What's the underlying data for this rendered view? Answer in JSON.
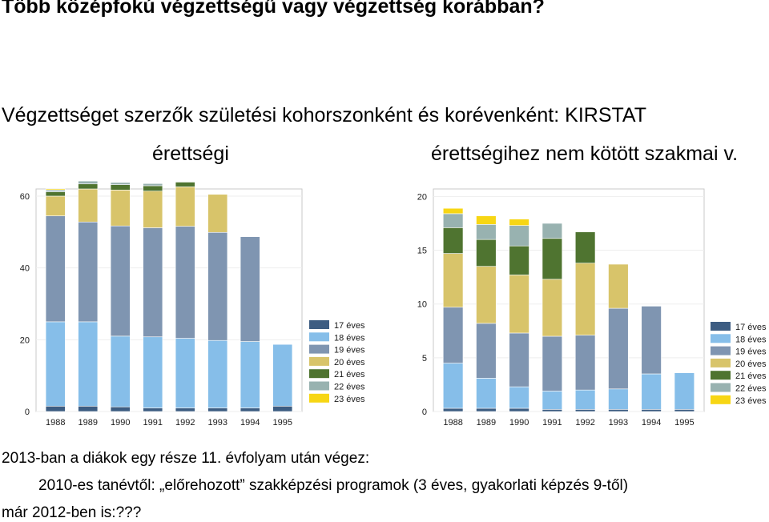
{
  "title": "Több középfokú végzettségű vagy végzettség korábban?",
  "subtitle": "Végzettséget szerzők születési kohorszonként és korévenként: KIRSTAT",
  "notes": {
    "line1": "2013-ban a diákok egy része 11. évfolyam után végez:",
    "line2": "2010-es tanévtől: „előrehozott” szakképzési programok (3 éves, gyakorlati képzés 9-től)",
    "line3": "már 2012-ben is:???"
  },
  "colors": {
    "17 éves": "#3d5d82",
    "18 éves": "#86bee9",
    "19 éves": "#7f95b1",
    "20 éves": "#d8c46a",
    "21 éves": "#4f7430",
    "22 éves": "#98b2b0",
    "23 éves": "#f7d614"
  },
  "chart_data": [
    {
      "type": "bar",
      "stacked": true,
      "title": "érettségi",
      "categories": [
        "1988",
        "1989",
        "1990",
        "1991",
        "1992",
        "1993",
        "1994",
        "1995"
      ],
      "ylim": [
        0,
        62
      ],
      "yticks": [
        0,
        20,
        40,
        60
      ],
      "legend": "right",
      "series": [
        {
          "name": "17 éves",
          "values": [
            1.5,
            1.5,
            1.3,
            1.0,
            1.0,
            1.0,
            1.0,
            1.5
          ]
        },
        {
          "name": "18 éves",
          "values": [
            23.5,
            23.5,
            19.7,
            19.8,
            19.4,
            18.8,
            18.5,
            17.2
          ]
        },
        {
          "name": "19 éves",
          "values": [
            29.5,
            27.8,
            30.7,
            30.4,
            31.2,
            30.1,
            29.2,
            0
          ]
        },
        {
          "name": "20 éves",
          "values": [
            5.5,
            9.2,
            10.0,
            10.2,
            11.0,
            10.6,
            0,
            0
          ]
        },
        {
          "name": "21 éves",
          "values": [
            1.2,
            1.4,
            1.5,
            1.5,
            1.3,
            0,
            0,
            0
          ]
        },
        {
          "name": "22 éves",
          "values": [
            0.5,
            0.8,
            0.6,
            0.6,
            0,
            0,
            0,
            0
          ]
        },
        {
          "name": "23 éves",
          "values": [
            0.3,
            0,
            0,
            0,
            0,
            0,
            0,
            0
          ]
        }
      ]
    },
    {
      "type": "bar",
      "stacked": true,
      "title": "érettségihez nem kötött szakmai v.",
      "categories": [
        "1988",
        "1989",
        "1990",
        "1991",
        "1992",
        "1993",
        "1994",
        "1995"
      ],
      "ylim": [
        0,
        20.7
      ],
      "yticks": [
        0,
        5,
        10,
        15,
        20
      ],
      "legend": "right",
      "series": [
        {
          "name": "17 éves",
          "values": [
            0.3,
            0.3,
            0.3,
            0.2,
            0.2,
            0.2,
            0.2,
            0.2
          ]
        },
        {
          "name": "18 éves",
          "values": [
            4.2,
            2.8,
            2.0,
            1.7,
            1.8,
            1.9,
            3.3,
            3.4
          ]
        },
        {
          "name": "19 éves",
          "values": [
            5.2,
            5.1,
            5.0,
            5.1,
            5.1,
            7.5,
            6.3,
            0
          ]
        },
        {
          "name": "20 éves",
          "values": [
            5.0,
            5.3,
            5.4,
            5.3,
            6.7,
            4.1,
            0,
            0
          ]
        },
        {
          "name": "21 éves",
          "values": [
            2.4,
            2.5,
            2.7,
            3.8,
            2.9,
            0,
            0,
            0
          ]
        },
        {
          "name": "22 éves",
          "values": [
            1.3,
            1.4,
            1.9,
            1.4,
            0,
            0,
            0,
            0
          ]
        },
        {
          "name": "23 éves",
          "values": [
            0.5,
            0.8,
            0.6,
            0,
            0,
            0,
            0,
            0
          ]
        }
      ]
    }
  ]
}
